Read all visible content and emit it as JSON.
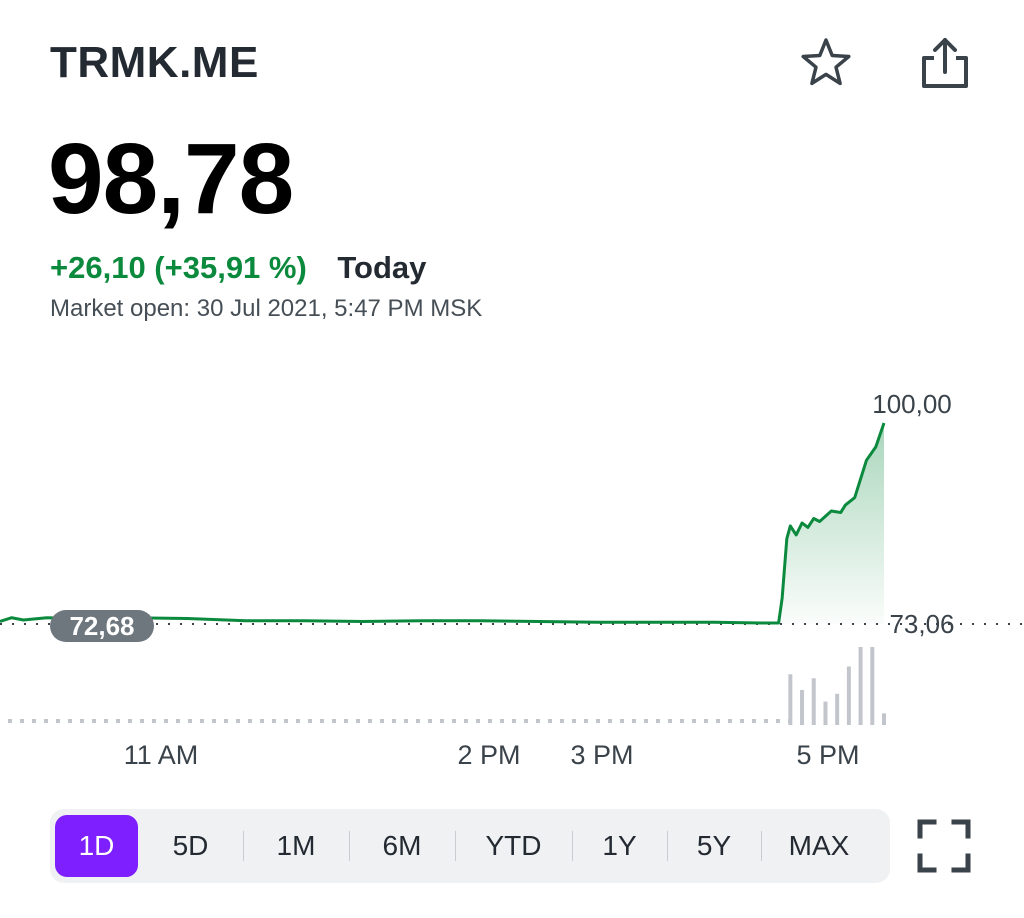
{
  "header": {
    "ticker": "TRMK.ME",
    "icons": {
      "favorite": "star-outline-icon",
      "share": "share-icon"
    }
  },
  "quote": {
    "price": "98,78",
    "change": "+26,10 (+35,91 %)",
    "period": "Today",
    "market_status": "Market open: 30 Jul 2021, 5:47 PM MSK"
  },
  "colors": {
    "positive": "#0b8a3e",
    "accent": "#7e1fff",
    "line": "#0b8a3e",
    "volume": "#c2c6cc",
    "baseline_label_bg": "#6e767e"
  },
  "chart_data": {
    "type": "line",
    "x_tick_labels": [
      "11 AM",
      "2 PM",
      "3 PM",
      "5 PM"
    ],
    "y_max_label": "100,00",
    "baseline_label": "73,06",
    "prev_close_label": "72,68",
    "ylim": [
      73.06,
      100.0
    ],
    "series": [
      {
        "x": [
          9.9,
          10.0,
          10.1,
          10.3,
          10.6,
          11.0,
          11.5,
          12.0,
          12.5,
          13.0,
          13.5,
          14.0,
          14.5,
          15.0,
          15.5,
          16.0,
          16.4,
          16.55,
          16.58,
          16.62,
          16.65,
          16.7,
          16.75,
          16.8,
          16.85,
          16.9,
          17.0,
          17.08,
          17.12,
          17.2,
          17.3,
          17.38,
          17.45
        ],
        "y": [
          73.4,
          73.9,
          73.6,
          73.9,
          73.8,
          73.9,
          73.8,
          73.5,
          73.5,
          73.4,
          73.5,
          73.5,
          73.4,
          73.3,
          73.3,
          73.3,
          73.2,
          73.2,
          76.5,
          84.5,
          86.2,
          85.0,
          86.6,
          86.0,
          87.2,
          86.8,
          88.2,
          88.0,
          89.0,
          90.0,
          95.0,
          96.8,
          100.0
        ]
      }
    ],
    "volume": {
      "x": [
        16.65,
        16.75,
        16.85,
        16.95,
        17.05,
        17.15,
        17.25,
        17.35,
        17.45
      ],
      "values": [
        0.65,
        0.45,
        0.6,
        0.3,
        0.4,
        0.75,
        1.0,
        1.0,
        0.15
      ]
    },
    "grid": false
  },
  "range_selector": {
    "options": [
      "1D",
      "5D",
      "1M",
      "6M",
      "YTD",
      "1Y",
      "5Y",
      "MAX"
    ],
    "selected": "1D"
  },
  "fullscreen": {
    "icon": "fullscreen-icon"
  }
}
